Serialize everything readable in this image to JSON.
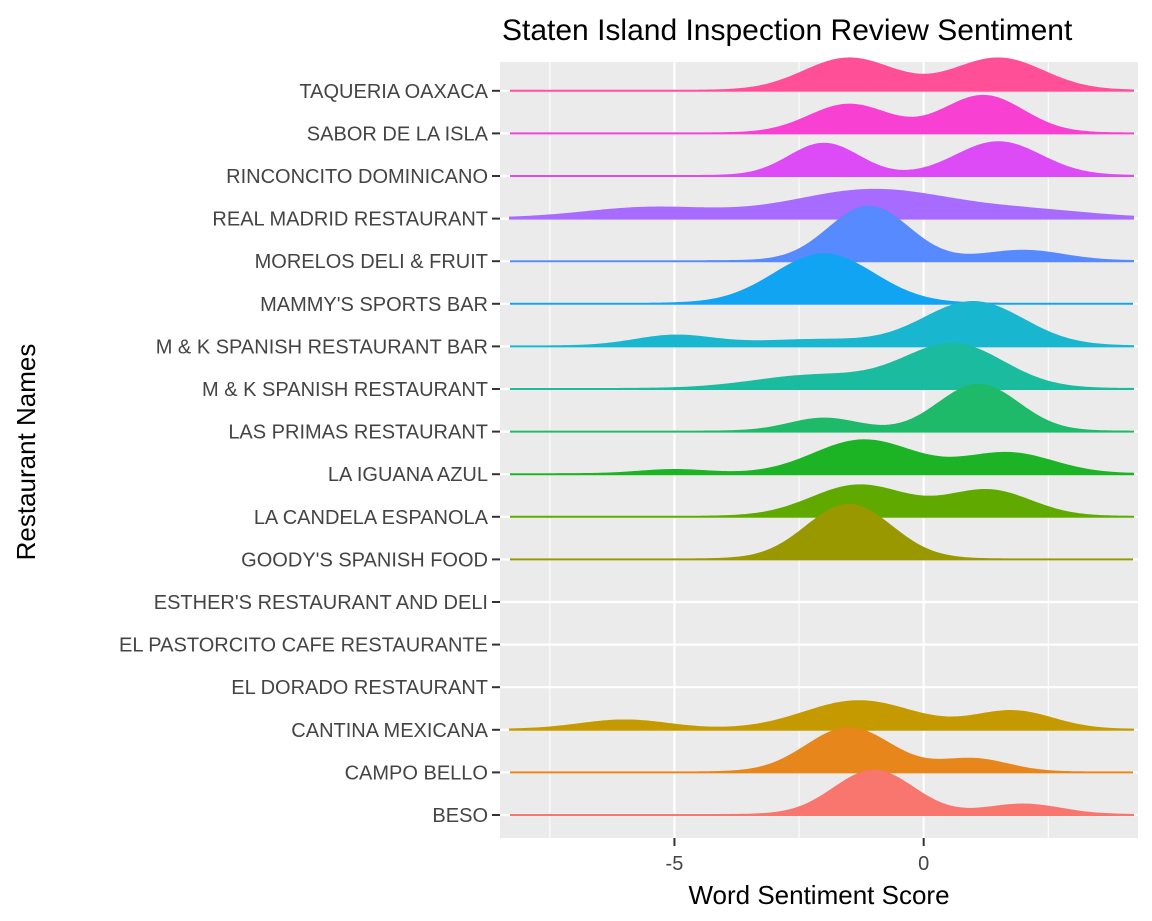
{
  "chart_data": {
    "type": "area",
    "title": "Staten Island Inspection Review Sentiment",
    "xlabel": "Word Sentiment Score",
    "ylabel": "Restaurant Names",
    "xlim": [
      -8.5,
      4.3
    ],
    "xticks": [
      -5,
      0
    ],
    "grid": true,
    "legend": "none",
    "series": [
      {
        "name": "BESO",
        "color": "#F8766D",
        "peaks": [
          [
            -1.0,
            0.85,
            0.8
          ],
          [
            2.0,
            0.2,
            0.75
          ]
        ]
      },
      {
        "name": "CAMPO BELLO",
        "color": "#E7861B",
        "peaks": [
          [
            -1.5,
            0.85,
            0.85
          ],
          [
            1.0,
            0.25,
            0.7
          ]
        ]
      },
      {
        "name": "CANTINA MEXICANA",
        "color": "#C49A00",
        "peaks": [
          [
            -6.0,
            0.18,
            0.9
          ],
          [
            -1.3,
            0.55,
            1.1
          ],
          [
            1.8,
            0.35,
            0.8
          ]
        ]
      },
      {
        "name": "EL DORADO RESTAURANT",
        "color": "#A9A400",
        "peaks": []
      },
      {
        "name": "EL PASTORCITO CAFE RESTAURANTE",
        "color": "#A9A400",
        "peaks": []
      },
      {
        "name": "ESTHER'S RESTAURANT AND DELI",
        "color": "#A9A400",
        "peaks": []
      },
      {
        "name": "GOODY'S SPANISH FOOD",
        "color": "#999800",
        "peaks": [
          [
            -1.5,
            1.05,
            0.85
          ]
        ]
      },
      {
        "name": "LA CANDELA ESPANOLA",
        "color": "#5FA900",
        "peaks": [
          [
            -1.3,
            0.6,
            0.95
          ],
          [
            1.3,
            0.5,
            0.85
          ]
        ]
      },
      {
        "name": "LA IGUANA AZUL",
        "color": "#1CB425",
        "peaks": [
          [
            -5.0,
            0.08,
            0.7
          ],
          [
            -1.2,
            0.65,
            1.0
          ],
          [
            1.7,
            0.4,
            0.9
          ]
        ]
      },
      {
        "name": "LAS PRIMAS RESTAURANT",
        "color": "#1EBA6A",
        "peaks": [
          [
            -2.0,
            0.25,
            0.7
          ],
          [
            1.1,
            0.9,
            0.8
          ]
        ]
      },
      {
        "name": "M & K SPANISH RESTAURANT",
        "color": "#1ABB9E",
        "peaks": [
          [
            -2.2,
            0.25,
            1.2
          ],
          [
            0.6,
            0.85,
            1.0
          ]
        ]
      },
      {
        "name": "M & K SPANISH RESTAURANT BAR",
        "color": "#19B6CF",
        "peaks": [
          [
            -5.0,
            0.2,
            0.8
          ],
          [
            -2.2,
            0.12,
            1.2
          ],
          [
            1.0,
            0.85,
            1.0
          ]
        ]
      },
      {
        "name": "MAMMY'S SPORTS BAR",
        "color": "#10A4F3",
        "peaks": [
          [
            -2.0,
            0.95,
            1.0
          ]
        ]
      },
      {
        "name": "MORELOS DELI & FRUIT",
        "color": "#5789FF",
        "peaks": [
          [
            -1.1,
            1.05,
            0.8
          ],
          [
            2.0,
            0.2,
            0.8
          ]
        ]
      },
      {
        "name": "REAL MADRID RESTAURANT",
        "color": "#A86BFF",
        "peaks": [
          [
            -5.5,
            0.2,
            1.3
          ],
          [
            -1.0,
            0.55,
            1.6
          ],
          [
            2.3,
            0.12,
            1.2
          ]
        ]
      },
      {
        "name": "RINCONCITO DOMINICANO",
        "color": "#DC4BF6",
        "peaks": [
          [
            -2.0,
            0.62,
            0.7
          ],
          [
            1.5,
            0.65,
            0.85
          ]
        ]
      },
      {
        "name": "SABOR DE LA ISLA",
        "color": "#F841D2",
        "peaks": [
          [
            -1.5,
            0.55,
            0.8
          ],
          [
            1.2,
            0.72,
            0.8
          ]
        ]
      },
      {
        "name": "TAQUERIA OAXACA",
        "color": "#FF4F97",
        "peaks": [
          [
            -1.5,
            0.62,
            0.9
          ],
          [
            1.5,
            0.62,
            0.9
          ]
        ]
      }
    ]
  }
}
